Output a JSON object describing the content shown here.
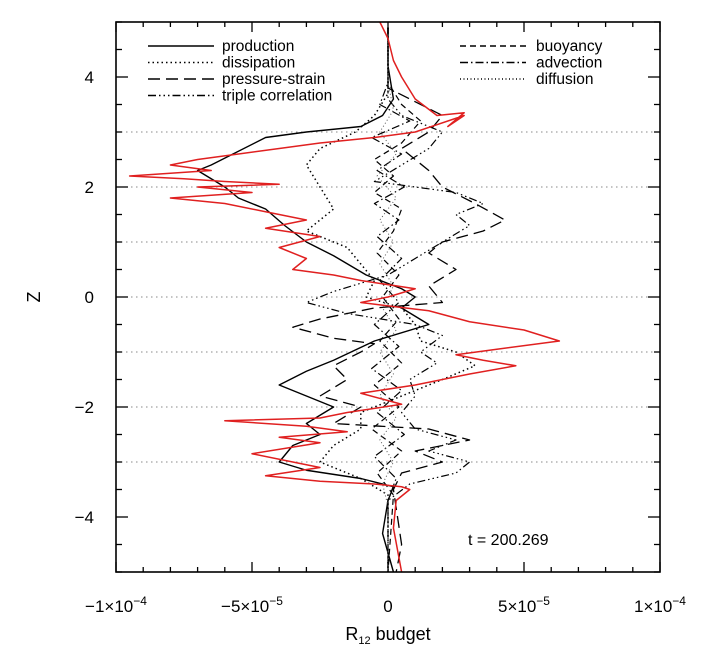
{
  "chart_data": {
    "type": "line",
    "xlabel": "R",
    "xlabel_subscript": "12",
    "xlabel_suffix": " budget",
    "ylabel": "Z",
    "xlim": [
      -0.0001,
      0.0001
    ],
    "ylim": [
      -5,
      5
    ],
    "x_ticks": [
      {
        "value": -0.0001,
        "mantissa": "−1×10",
        "exp": "−4"
      },
      {
        "value": -5e-05,
        "mantissa": "−5×10",
        "exp": "−5"
      },
      {
        "value": 0,
        "mantissa": "0",
        "exp": ""
      },
      {
        "value": 5e-05,
        "mantissa": "5×10",
        "exp": "−5"
      },
      {
        "value": 0.0001,
        "mantissa": "1×10",
        "exp": "−4"
      }
    ],
    "y_ticks": [
      -4,
      -2,
      0,
      2,
      4
    ],
    "y_ticks_text": [
      "−4",
      "−2",
      "0",
      "2",
      "4"
    ],
    "reference_lines_z": [
      -3,
      -2,
      -1,
      0,
      1,
      2,
      3
    ],
    "annotation": "t = 200.269",
    "legend_left": [
      {
        "label": "production",
        "dash": ""
      },
      {
        "label": "dissipation",
        "dash": "1.5,3"
      },
      {
        "label": "pressure-strain",
        "dash": "12,6"
      },
      {
        "label": "triple correlation",
        "dash": "8,3,1.5,3,1.5,3,1.5,3"
      }
    ],
    "legend_right": [
      {
        "label": "buoyancy",
        "dash": "6,4"
      },
      {
        "label": "advection",
        "dash": "8,3,1.5,3"
      },
      {
        "label": "diffusion",
        "dash": "1,2.5"
      }
    ],
    "series": [
      {
        "name": "production",
        "color": "#000000",
        "width": 1.4,
        "dash": "",
        "points": [
          [
            0,
            4.9
          ],
          [
            0,
            4.2
          ],
          [
            2e-06,
            3.6
          ],
          [
            -2e-06,
            3.3
          ],
          [
            -1e-05,
            3.1
          ],
          [
            -3e-05,
            3.0
          ],
          [
            -4.5e-05,
            2.9
          ],
          [
            -6.5e-05,
            2.4
          ],
          [
            -7e-05,
            2.3
          ],
          [
            -6e-05,
            2.0
          ],
          [
            -5.5e-05,
            1.8
          ],
          [
            -4.5e-05,
            1.6
          ],
          [
            -3.8e-05,
            1.3
          ],
          [
            -3e-05,
            1.0
          ],
          [
            -2e-05,
            0.75
          ],
          [
            -8e-06,
            0.4
          ],
          [
            5e-06,
            0.15
          ],
          [
            1e-05,
            0
          ],
          [
            5e-06,
            -0.2
          ],
          [
            1e-05,
            -0.35
          ],
          [
            1.5e-05,
            -0.5
          ],
          [
            -5e-06,
            -0.8
          ],
          [
            -2e-05,
            -1.15
          ],
          [
            -3e-05,
            -1.35
          ],
          [
            -4e-05,
            -1.6
          ],
          [
            -3e-05,
            -1.8
          ],
          [
            -2e-05,
            -2.0
          ],
          [
            -3e-05,
            -2.3
          ],
          [
            -2.5e-05,
            -2.5
          ],
          [
            -3.5e-05,
            -2.7
          ],
          [
            -4e-05,
            -3.0
          ],
          [
            -3e-05,
            -3.15
          ],
          [
            -1e-05,
            -3.3
          ],
          [
            2e-06,
            -3.45
          ],
          [
            0,
            -3.7
          ],
          [
            -2e-06,
            -4.3
          ],
          [
            2e-06,
            -5
          ]
        ]
      },
      {
        "name": "dissipation",
        "color": "#000000",
        "width": 1.5,
        "dash": "1.5,3",
        "points": [
          [
            0,
            4.9
          ],
          [
            0,
            3.7
          ],
          [
            -5e-06,
            3.3
          ],
          [
            -1.2e-05,
            3.0
          ],
          [
            -2.5e-05,
            2.7
          ],
          [
            -3e-05,
            2.4
          ],
          [
            -2.5e-05,
            2.0
          ],
          [
            -2e-05,
            1.6
          ],
          [
            -3e-05,
            1.2
          ],
          [
            -1.5e-05,
            0.9
          ],
          [
            -1e-05,
            0.6
          ],
          [
            -5e-06,
            0.3
          ],
          [
            -8e-06,
            0
          ],
          [
            5e-06,
            -0.2
          ],
          [
            1e-05,
            -0.5
          ],
          [
            1.2e-05,
            -0.8
          ],
          [
            2.5e-05,
            -1.0
          ],
          [
            3.2e-05,
            -1.25
          ],
          [
            2e-05,
            -1.5
          ],
          [
            5e-06,
            -1.8
          ],
          [
            -1e-05,
            -2.1
          ],
          [
            -1e-05,
            -2.4
          ],
          [
            -2e-05,
            -2.7
          ],
          [
            -2.5e-05,
            -3.0
          ],
          [
            -1e-05,
            -3.3
          ],
          [
            0,
            -3.6
          ],
          [
            0,
            -5
          ]
        ]
      },
      {
        "name": "pressure-strain",
        "color": "#000000",
        "width": 1.3,
        "dash": "12,6",
        "points": [
          [
            0,
            4.9
          ],
          [
            0,
            3.8
          ],
          [
            2e-05,
            3.3
          ],
          [
            1.5e-05,
            3.0
          ],
          [
            5e-06,
            2.7
          ],
          [
            1.5e-05,
            2.3
          ],
          [
            2e-05,
            2.0
          ],
          [
            3.2e-05,
            1.7
          ],
          [
            4.3e-05,
            1.4
          ],
          [
            3.5e-05,
            1.2
          ],
          [
            2e-05,
            1.0
          ],
          [
            1.5e-05,
            0.8
          ],
          [
            2.5e-05,
            0.5
          ],
          [
            1.5e-05,
            0.2
          ],
          [
            2e-05,
            -0.1
          ],
          [
            -5e-06,
            -0.2
          ],
          [
            -2.5e-05,
            -0.4
          ],
          [
            -3.5e-05,
            -0.55
          ],
          [
            -2e-05,
            -0.75
          ],
          [
            -5e-06,
            -0.85
          ],
          [
            -1e-05,
            -1.0
          ],
          [
            -2e-05,
            -1.25
          ],
          [
            -1.5e-05,
            -1.5
          ],
          [
            -2.5e-05,
            -1.8
          ],
          [
            -1e-05,
            -2.0
          ],
          [
            -2e-05,
            -2.3
          ],
          [
            1.5e-05,
            -2.4
          ],
          [
            3e-05,
            -2.6
          ],
          [
            1e-05,
            -2.8
          ],
          [
            2e-05,
            -3.0
          ],
          [
            5e-06,
            -3.2
          ],
          [
            2e-06,
            -3.5
          ],
          [
            5e-06,
            -4.5
          ],
          [
            3e-06,
            -5
          ]
        ]
      },
      {
        "name": "triple correlation",
        "color": "#000000",
        "width": 1.2,
        "dash": "8,3,1.5,3,1.5,3,1.5,3",
        "points": [
          [
            0,
            4.9
          ],
          [
            0,
            3.6
          ],
          [
            5e-06,
            3.3
          ],
          [
            2e-05,
            3.0
          ],
          [
            1.5e-05,
            2.7
          ],
          [
            5e-06,
            2.4
          ],
          [
            -5e-06,
            2.1
          ],
          [
            2.5e-05,
            1.9
          ],
          [
            3.5e-05,
            1.7
          ],
          [
            2.5e-05,
            1.5
          ],
          [
            3e-05,
            1.3
          ],
          [
            2e-05,
            1.0
          ],
          [
            1e-05,
            0.7
          ],
          [
            0,
            0.4
          ],
          [
            -2e-05,
            0.1
          ],
          [
            -3e-05,
            -0.1
          ],
          [
            -1.5e-05,
            -0.3
          ],
          [
            1e-05,
            -0.5
          ],
          [
            2e-05,
            -0.7
          ],
          [
            1.2e-05,
            -1.0
          ],
          [
            1.8e-05,
            -1.2
          ],
          [
            8e-06,
            -1.5
          ],
          [
            1e-05,
            -1.8
          ],
          [
            5e-06,
            -2.1
          ],
          [
            1e-05,
            -2.4
          ],
          [
            2.5e-05,
            -2.6
          ],
          [
            1.5e-05,
            -2.8
          ],
          [
            3e-05,
            -3.0
          ],
          [
            2.5e-05,
            -3.2
          ],
          [
            8e-06,
            -3.4
          ],
          [
            0,
            -3.7
          ],
          [
            0,
            -5
          ]
        ]
      },
      {
        "name": "buoyancy",
        "color": "#000000",
        "width": 1.2,
        "dash": "6,4",
        "points": [
          [
            0,
            4.9
          ],
          [
            0,
            3.9
          ],
          [
            5e-06,
            3.5
          ],
          [
            1.2e-05,
            3.2
          ],
          [
            5e-06,
            2.8
          ],
          [
            -5e-06,
            2.5
          ],
          [
            2e-06,
            2.2
          ],
          [
            -5e-06,
            1.9
          ],
          [
            5e-06,
            1.6
          ],
          [
            2e-06,
            1.2
          ],
          [
            -4e-06,
            0.8
          ],
          [
            4e-06,
            0.4
          ],
          [
            -2e-06,
            0
          ],
          [
            4e-06,
            -0.4
          ],
          [
            -3e-06,
            -0.8
          ],
          [
            5e-06,
            -1.2
          ],
          [
            -5e-06,
            -1.6
          ],
          [
            4e-06,
            -2.0
          ],
          [
            -6e-06,
            -2.4
          ],
          [
            5e-06,
            -2.8
          ],
          [
            -4e-06,
            -3.2
          ],
          [
            2e-06,
            -3.6
          ],
          [
            0,
            -5
          ]
        ]
      },
      {
        "name": "advection",
        "color": "#000000",
        "width": 1.2,
        "dash": "8,3,1.5,3",
        "points": [
          [
            0,
            4.9
          ],
          [
            0,
            3.9
          ],
          [
            -3e-06,
            3.5
          ],
          [
            8e-06,
            3.2
          ],
          [
            -6e-06,
            2.9
          ],
          [
            5e-06,
            2.6
          ],
          [
            -4e-06,
            2.3
          ],
          [
            6e-06,
            2.0
          ],
          [
            -5e-06,
            1.7
          ],
          [
            4e-06,
            1.4
          ],
          [
            -4e-06,
            1.1
          ],
          [
            5e-06,
            0.7
          ],
          [
            -3e-06,
            0.3
          ],
          [
            4e-06,
            -0.1
          ],
          [
            -5e-06,
            -0.5
          ],
          [
            4e-06,
            -0.9
          ],
          [
            -6e-06,
            -1.3
          ],
          [
            5e-06,
            -1.7
          ],
          [
            -4e-06,
            -2.1
          ],
          [
            6e-06,
            -2.5
          ],
          [
            -5e-06,
            -2.9
          ],
          [
            3e-06,
            -3.3
          ],
          [
            0,
            -3.7
          ],
          [
            0,
            -5
          ]
        ]
      },
      {
        "name": "diffusion",
        "color": "#555555",
        "width": 1.0,
        "dash": "1,2.5",
        "points": [
          [
            0,
            4.9
          ],
          [
            0,
            3.9
          ],
          [
            2e-06,
            3.4
          ],
          [
            -3e-06,
            3.0
          ],
          [
            3e-06,
            2.6
          ],
          [
            -4e-06,
            2.2
          ],
          [
            3e-06,
            1.8
          ],
          [
            -3e-06,
            1.4
          ],
          [
            2e-06,
            1.0
          ],
          [
            -3e-06,
            0.6
          ],
          [
            2e-06,
            0.2
          ],
          [
            -2e-06,
            -0.2
          ],
          [
            3e-06,
            -0.6
          ],
          [
            -3e-06,
            -1.0
          ],
          [
            2e-06,
            -1.4
          ],
          [
            -3e-06,
            -1.8
          ],
          [
            3e-06,
            -2.2
          ],
          [
            -3e-06,
            -2.6
          ],
          [
            2e-06,
            -3.0
          ],
          [
            -2e-06,
            -3.4
          ],
          [
            0,
            -3.8
          ],
          [
            0,
            -5
          ]
        ]
      },
      {
        "name": "",
        "color": "#e02020",
        "width": 1.5,
        "dash": "",
        "points": [
          [
            -3e-06,
            5.0
          ],
          [
            0,
            4.7
          ],
          [
            2e-06,
            4.3
          ],
          [
            5e-06,
            4.0
          ],
          [
            1e-05,
            3.6
          ],
          [
            1.8e-05,
            3.3
          ],
          [
            2.8e-05,
            3.35
          ],
          [
            2.2e-05,
            3.1
          ],
          [
            2.8e-05,
            3.3
          ],
          [
            1e-05,
            3.0
          ],
          [
            -5e-06,
            2.9
          ],
          [
            -2.5e-05,
            2.8
          ],
          [
            -4e-05,
            2.7
          ],
          [
            -5.5e-05,
            2.6
          ],
          [
            -7e-05,
            2.5
          ],
          [
            -8e-05,
            2.4
          ],
          [
            -6.5e-05,
            2.3
          ],
          [
            -9.5e-05,
            2.2
          ],
          [
            -7.5e-05,
            2.15
          ],
          [
            -6e-05,
            2.1
          ],
          [
            -4e-05,
            2.05
          ],
          [
            -7e-05,
            2.0
          ],
          [
            -5e-05,
            1.9
          ],
          [
            -8e-05,
            1.8
          ],
          [
            -6e-05,
            1.7
          ],
          [
            -4.5e-05,
            1.55
          ],
          [
            -3e-05,
            1.4
          ],
          [
            -4.5e-05,
            1.25
          ],
          [
            -2.5e-05,
            1.1
          ],
          [
            -4e-05,
            0.9
          ],
          [
            -3e-05,
            0.7
          ],
          [
            -3.5e-05,
            0.5
          ],
          [
            -2e-05,
            0.4
          ],
          [
            -1e-05,
            0.3
          ],
          [
            1e-05,
            0.15
          ],
          [
            0,
            0.0
          ],
          [
            -1e-05,
            -0.1
          ],
          [
            1.5e-05,
            -0.25
          ],
          [
            3e-05,
            -0.45
          ],
          [
            5e-05,
            -0.6
          ],
          [
            6.3e-05,
            -0.8
          ],
          [
            4e-05,
            -0.95
          ],
          [
            2.5e-05,
            -1.05
          ],
          [
            3.5e-05,
            -1.15
          ],
          [
            4.7e-05,
            -1.25
          ],
          [
            3e-05,
            -1.4
          ],
          [
            1e-05,
            -1.6
          ],
          [
            -1e-05,
            -1.75
          ],
          [
            5e-06,
            -1.95
          ],
          [
            -1.5e-05,
            -2.1
          ],
          [
            -2.5e-05,
            -2.2
          ],
          [
            -6e-05,
            -2.25
          ],
          [
            -3e-05,
            -2.35
          ],
          [
            -1.5e-05,
            -2.45
          ],
          [
            -4e-05,
            -2.55
          ],
          [
            -2.5e-05,
            -2.65
          ],
          [
            -5e-05,
            -2.85
          ],
          [
            -3.5e-05,
            -3.0
          ],
          [
            -2.5e-05,
            -3.1
          ],
          [
            -4.5e-05,
            -3.25
          ],
          [
            -2.5e-05,
            -3.35
          ],
          [
            -5e-06,
            -3.4
          ],
          [
            5e-06,
            -3.45
          ],
          [
            8e-06,
            -3.5
          ],
          [
            3e-06,
            -3.7
          ],
          [
            2e-06,
            -4.2
          ],
          [
            5e-06,
            -5
          ]
        ]
      }
    ]
  }
}
